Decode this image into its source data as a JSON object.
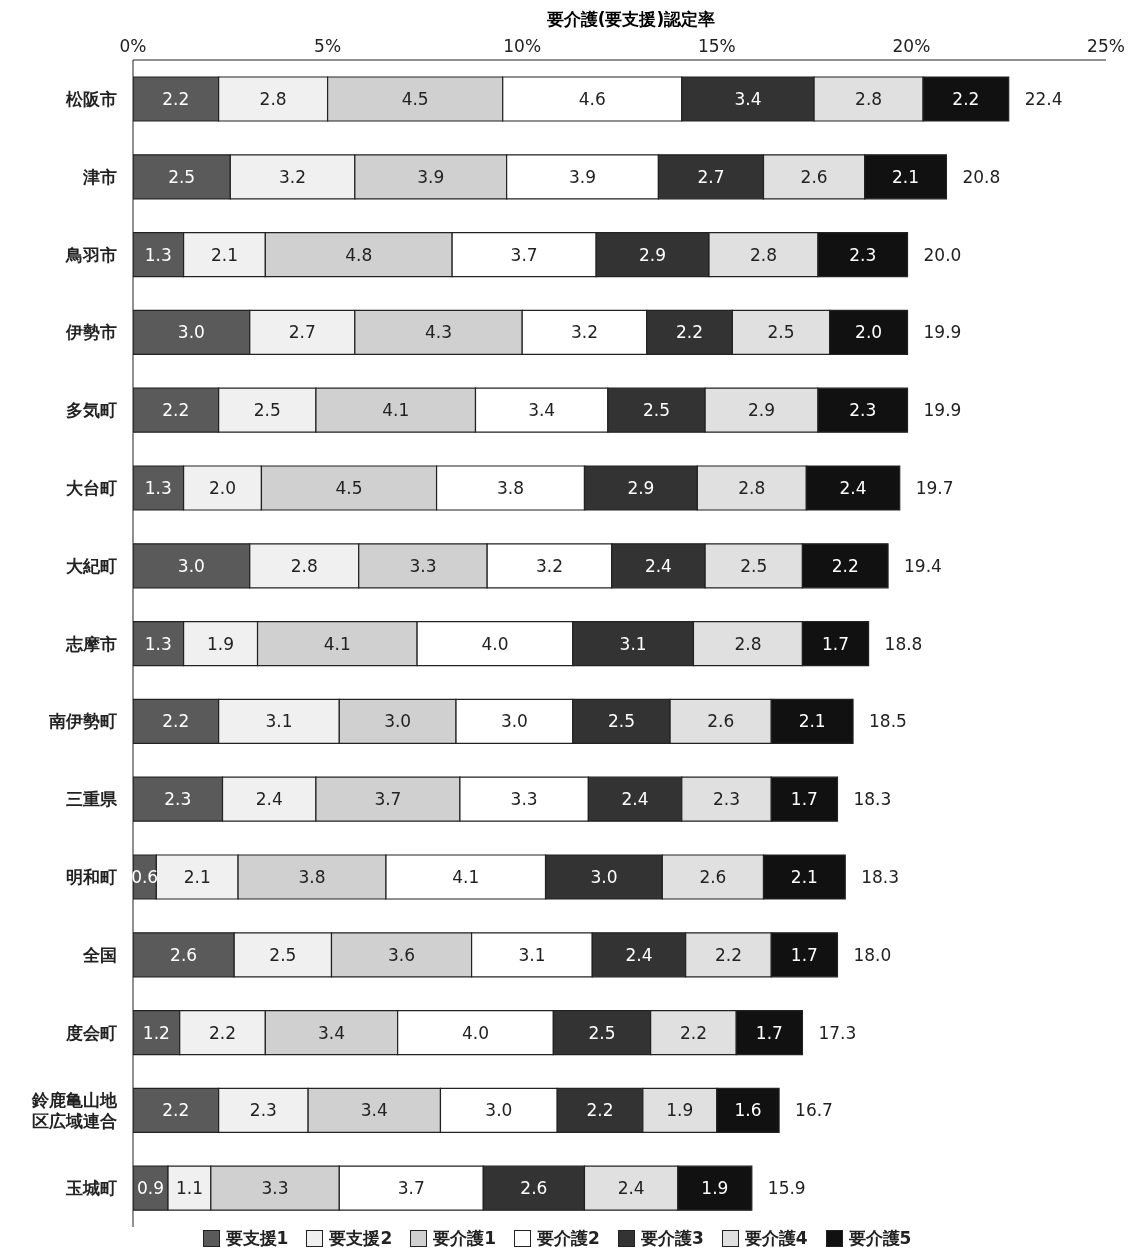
{
  "chart_data": {
    "type": "bar",
    "orientation": "horizontal",
    "stacked": true,
    "xlabel": "要介護(要支援)認定率",
    "categories": [
      "松阪市",
      "津市",
      "鳥羽市",
      "伊勢市",
      "多気町",
      "大台町",
      "大紀町",
      "志摩市",
      "南伊勢町",
      "三重県",
      "明和町",
      "全国",
      "度会町",
      "鈴鹿亀山地区広域連合",
      "玉城町"
    ],
    "series": [
      {
        "name": "要支援1",
        "color": "#5a5a5a",
        "values": [
          2.2,
          2.5,
          1.3,
          3.0,
          2.2,
          1.3,
          3.0,
          1.3,
          2.2,
          2.3,
          0.6,
          2.6,
          1.2,
          2.2,
          0.9
        ],
        "value_labels": [
          "2.2",
          "2.5",
          "1.3",
          "3.0",
          "2.2",
          "1.3",
          "3.0",
          "1.3",
          "2.2",
          "2.3",
          "0.6",
          "2.6",
          "1.2",
          "2.2",
          "0.9"
        ]
      },
      {
        "name": "要支援2",
        "color": "#f0f0f0",
        "values": [
          2.8,
          3.2,
          2.1,
          2.7,
          2.5,
          2.0,
          2.8,
          1.9,
          3.1,
          2.4,
          2.1,
          2.5,
          2.2,
          2.3,
          1.1
        ],
        "value_labels": [
          "2.8",
          "3.2",
          "2.1",
          "2.7",
          "2.5",
          "2.0",
          "2.8",
          "1.9",
          "3.1",
          "2.4",
          "2.1",
          "2.5",
          "2.2",
          "2.3",
          "1.1"
        ]
      },
      {
        "name": "要介護1",
        "color": "#d0d0d0",
        "values": [
          4.5,
          3.9,
          4.8,
          4.3,
          4.1,
          4.5,
          3.3,
          4.1,
          3.0,
          3.7,
          3.8,
          3.6,
          3.4,
          3.4,
          3.3
        ],
        "value_labels": [
          "4.5",
          "3.9",
          "4.8",
          "4.3",
          "4.1",
          "4.5",
          "3.3",
          "4.1",
          "3.0",
          "3.7",
          "3.8",
          "3.6",
          "3.4",
          "3.4",
          "3.3"
        ]
      },
      {
        "name": "要介護2",
        "color": "#ffffff",
        "values": [
          4.6,
          3.9,
          3.7,
          3.2,
          3.4,
          3.8,
          3.2,
          4.0,
          3.0,
          3.3,
          4.1,
          3.1,
          4.0,
          3.0,
          3.7
        ],
        "value_labels": [
          "4.6",
          "3.9",
          "3.7",
          "3.2",
          "3.4",
          "3.8",
          "3.2",
          "4.0",
          "3.0",
          "3.3",
          "4.1",
          "3.1",
          "4.0",
          "3.0",
          "3.7"
        ]
      },
      {
        "name": "要介護3",
        "color": "#333333",
        "values": [
          3.4,
          2.7,
          2.9,
          2.2,
          2.5,
          2.9,
          2.4,
          3.1,
          2.5,
          2.4,
          3.0,
          2.4,
          2.5,
          2.2,
          2.6
        ],
        "value_labels": [
          "3.4",
          "2.7",
          "2.9",
          "2.2",
          "2.5",
          "2.9",
          "2.4",
          "3.1",
          "2.5",
          "2.4",
          "3.0",
          "2.4",
          "2.5",
          "2.2",
          "2.6"
        ]
      },
      {
        "name": "要介護4",
        "color": "#e0e0e0",
        "values": [
          2.8,
          2.6,
          2.8,
          2.5,
          2.9,
          2.8,
          2.5,
          2.8,
          2.6,
          2.3,
          2.6,
          2.2,
          2.2,
          1.9,
          2.4
        ],
        "value_labels": [
          "2.8",
          "2.6",
          "2.8",
          "2.5",
          "2.9",
          "2.8",
          "2.5",
          "2.8",
          "2.6",
          "2.3",
          "2.6",
          "2.2",
          "2.2",
          "1.9",
          "2.4"
        ]
      },
      {
        "name": "要介護5",
        "color": "#111111",
        "values": [
          2.2,
          2.1,
          2.3,
          2.0,
          2.3,
          2.4,
          2.2,
          1.7,
          2.1,
          1.7,
          2.1,
          1.7,
          1.7,
          1.6,
          1.9
        ],
        "value_labels": [
          "2.2",
          "2.1",
          "2.3",
          "2.0",
          "2.3",
          "2.4",
          "2.2",
          "1.7",
          "2.1",
          "1.7",
          "2.1",
          "1.7",
          "1.7",
          "1.6",
          "1.9"
        ]
      }
    ],
    "totals": [
      "22.4",
      "20.8",
      "20.0",
      "19.9",
      "19.9",
      "19.7",
      "19.4",
      "18.8",
      "18.5",
      "18.3",
      "18.3",
      "18.0",
      "17.3",
      "16.7",
      "15.9"
    ],
    "xlim": [
      0,
      25
    ],
    "xticks": [
      {
        "value": 0,
        "label": "0%"
      },
      {
        "value": 5,
        "label": "5%"
      },
      {
        "value": 10,
        "label": "10%"
      },
      {
        "value": 15,
        "label": "15%"
      },
      {
        "value": 20,
        "label": "20%"
      },
      {
        "value": 25,
        "label": "25%"
      }
    ],
    "grid": false,
    "legend": "bottom"
  }
}
